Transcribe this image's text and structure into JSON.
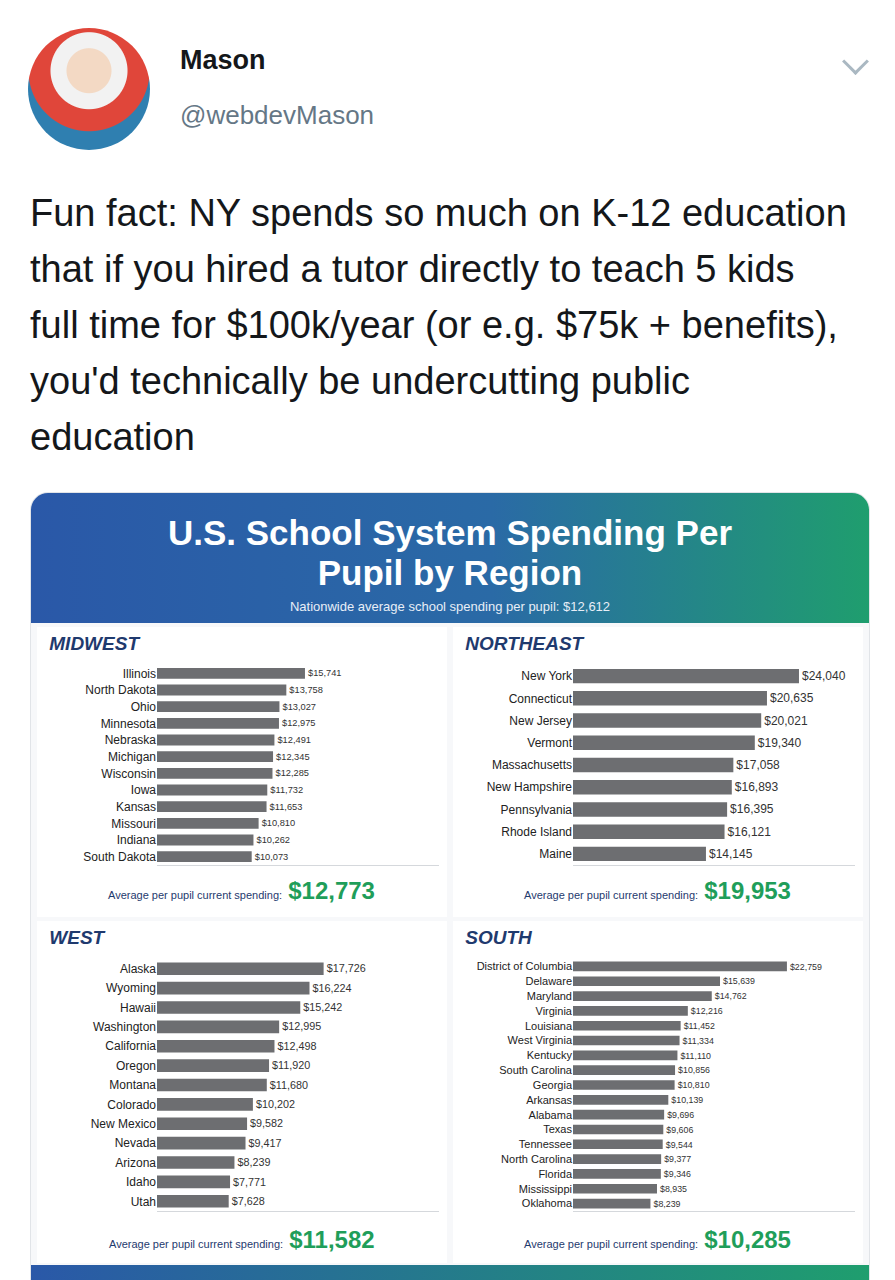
{
  "tweet": {
    "name": "Mason",
    "handle": "@webdevMason",
    "text": "Fun fact: NY spends so much on K-12 education that if you hired a tutor directly to teach 5 kids full time for $100k/year (or e.g. $75k + benefits), you'd technically be undercutting public education"
  },
  "infographic": {
    "title": "U.S. School System Spending Per Pupil by Region",
    "subtitle": "Nationwide average school spending per pupil: $12,612"
  },
  "chart_data": [
    {
      "type": "bar",
      "title": "MIDWEST",
      "orientation": "horizontal",
      "data_labels": true,
      "tick_labels": "y",
      "color": "#6d6e71",
      "categories": [
        "Illinois",
        "North Dakota",
        "Ohio",
        "Minnesota",
        "Nebraska",
        "Michigan",
        "Wisconsin",
        "Iowa",
        "Kansas",
        "Missouri",
        "Indiana",
        "South Dakota"
      ],
      "values": [
        15741,
        13758,
        13027,
        12975,
        12491,
        12345,
        12285,
        11732,
        11653,
        10810,
        10262,
        10073
      ],
      "value_labels": [
        "$15,741",
        "$13,758",
        "$13,027",
        "$12,975",
        "$12,491",
        "$12,345",
        "$12,285",
        "$11,732",
        "$11,653",
        "$10,810",
        "$10,262",
        "$10,073"
      ],
      "xlim": [
        0,
        30000
      ],
      "annotations": [
        "Average per pupil current spending:",
        "$12,773"
      ]
    },
    {
      "type": "bar",
      "title": "NORTHEAST",
      "orientation": "horizontal",
      "data_labels": true,
      "tick_labels": "y",
      "color": "#6d6e71",
      "categories": [
        "New York",
        "Connecticut",
        "New Jersey",
        "Vermont",
        "Massachusetts",
        "New Hampshire",
        "Pennsylvania",
        "Rhode Island",
        "Maine"
      ],
      "values": [
        24040,
        20635,
        20021,
        19340,
        17058,
        16893,
        16395,
        16121,
        14145
      ],
      "value_labels": [
        "$24,040",
        "$20,635",
        "$20,021",
        "$19,340",
        "$17,058",
        "$16,893",
        "$16,395",
        "$16,121",
        "$14,145"
      ],
      "xlim": [
        0,
        30000
      ],
      "annotations": [
        "Average per pupil current spending:",
        "$19,953"
      ]
    },
    {
      "type": "bar",
      "title": "WEST",
      "orientation": "horizontal",
      "data_labels": true,
      "tick_labels": "y",
      "color": "#6d6e71",
      "categories": [
        "Alaska",
        "Wyoming",
        "Hawaii",
        "Washington",
        "California",
        "Oregon",
        "Montana",
        "Colorado",
        "New Mexico",
        "Nevada",
        "Arizona",
        "Idaho",
        "Utah"
      ],
      "values": [
        17726,
        16224,
        15242,
        12995,
        12498,
        11920,
        11680,
        10202,
        9582,
        9417,
        8239,
        7771,
        7628
      ],
      "value_labels": [
        "$17,726",
        "$16,224",
        "$15,242",
        "$12,995",
        "$12,498",
        "$11,920",
        "$11,680",
        "$10,202",
        "$9,582",
        "$9,417",
        "$8,239",
        "$7,771",
        "$7,628"
      ],
      "xlim": [
        0,
        30000
      ],
      "annotations": [
        "Average per pupil current spending:",
        "$11,582"
      ]
    },
    {
      "type": "bar",
      "title": "SOUTH",
      "orientation": "horizontal",
      "data_labels": true,
      "tick_labels": "y",
      "color": "#6d6e71",
      "categories": [
        "District of Columbia",
        "Delaware",
        "Maryland",
        "Virginia",
        "Louisiana",
        "West Virginia",
        "Kentucky",
        "South Carolina",
        "Georgia",
        "Arkansas",
        "Alabama",
        "Texas",
        "Tennessee",
        "North Carolina",
        "Florida",
        "Mississippi",
        "Oklahoma"
      ],
      "values": [
        22759,
        15639,
        14762,
        12216,
        11452,
        11334,
        11110,
        10856,
        10810,
        10139,
        9696,
        9606,
        9544,
        9377,
        9346,
        8935,
        8239
      ],
      "value_labels": [
        "$22,759",
        "$15,639",
        "$14,762",
        "$12,216",
        "$11,452",
        "$11,334",
        "$11,110",
        "$10,856",
        "$10,810",
        "$10,139",
        "$9,696",
        "$9,606",
        "$9,544",
        "$9,377",
        "$9,346",
        "$8,935",
        "$8,239"
      ],
      "xlim": [
        0,
        30000
      ],
      "annotations": [
        "Average per pupil current spending:",
        "$10,285"
      ]
    }
  ]
}
